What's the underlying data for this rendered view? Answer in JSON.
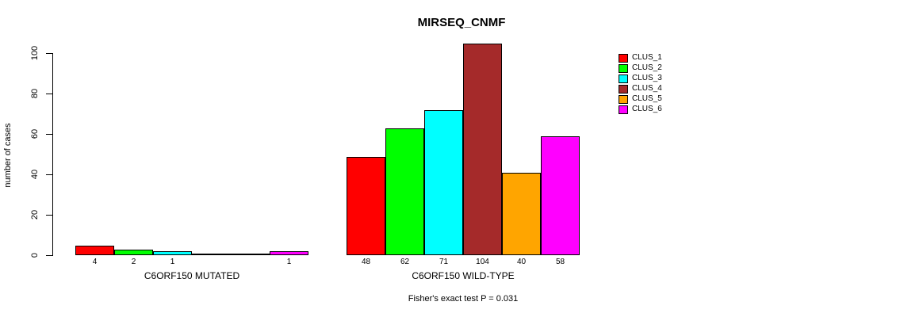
{
  "chart_data": {
    "type": "bar",
    "title": "MIRSEQ_CNMF",
    "ylabel": "number of cases",
    "ylim": [
      0,
      100
    ],
    "yticks": [
      0,
      20,
      40,
      60,
      80,
      100
    ],
    "grid": false,
    "legend_position": "right",
    "series": [
      {
        "name": "CLUS_1",
        "color": "#FF0000"
      },
      {
        "name": "CLUS_2",
        "color": "#00FF00"
      },
      {
        "name": "CLUS_3",
        "color": "#00FFFF"
      },
      {
        "name": "CLUS_4",
        "color": "#A52A2A"
      },
      {
        "name": "CLUS_5",
        "color": "#FFA500"
      },
      {
        "name": "CLUS_6",
        "color": "#FF00FF"
      }
    ],
    "groups": [
      {
        "label": "C6ORF150 MUTATED",
        "values": [
          4,
          2,
          1,
          0,
          0,
          1
        ]
      },
      {
        "label": "C6ORF150 WILD-TYPE",
        "values": [
          48,
          62,
          71,
          104,
          40,
          58
        ]
      }
    ],
    "footnote": "Fisher's exact test P = 0.031"
  }
}
